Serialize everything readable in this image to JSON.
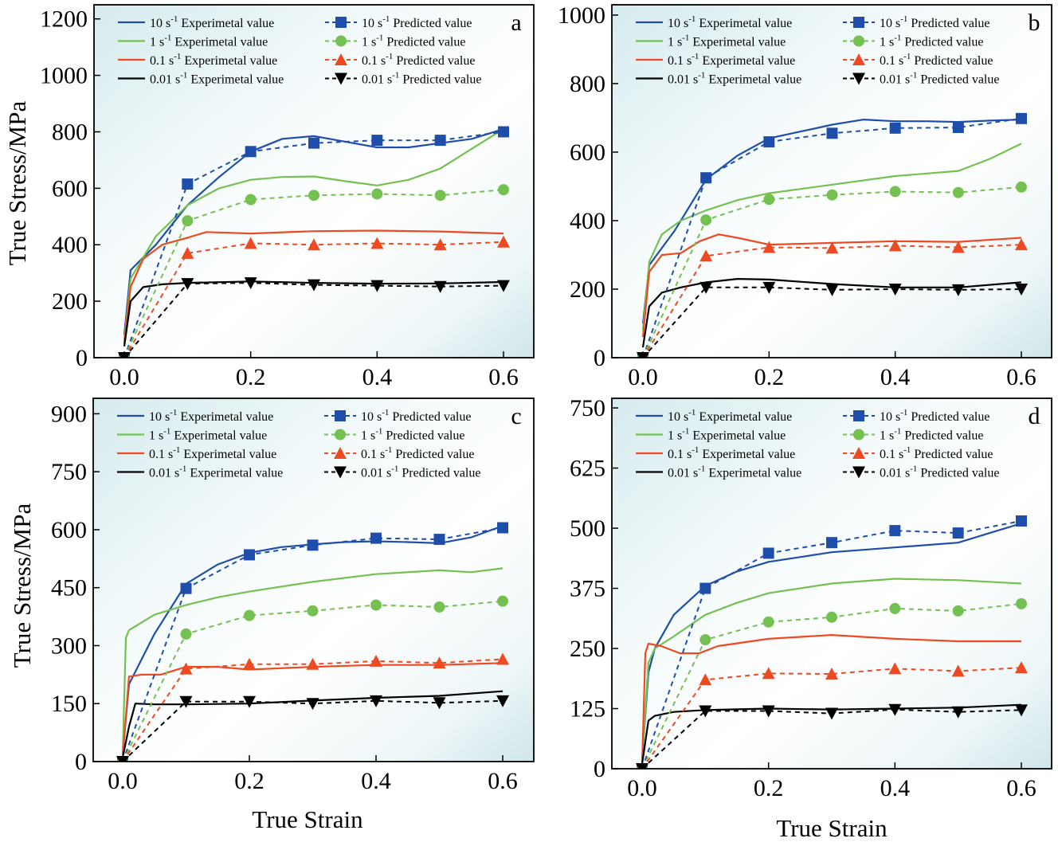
{
  "figure": {
    "xlabel": "True Strain",
    "ylabel": "True Stress/MPa"
  },
  "series_style": {
    "10": {
      "color": "#1f4eaa",
      "marker": "square"
    },
    "1": {
      "color": "#74c151",
      "marker": "circle"
    },
    "0.1": {
      "color": "#ee4a22",
      "marker": "triangle-up"
    },
    "0.01": {
      "color": "#000000",
      "marker": "triangle-down"
    }
  },
  "chart_data": [
    {
      "type": "line",
      "panel": "a",
      "xlim": [
        -0.05,
        0.62
      ],
      "ylim": [
        0,
        1250
      ],
      "xticks": [
        "0.0",
        "0.2",
        "0.4",
        "0.6"
      ],
      "yticks": [
        "0",
        "200",
        "400",
        "600",
        "800",
        "1000",
        "1200"
      ],
      "legend": [
        {
          "rate": "10",
          "base": "10 s",
          "sup": "-1",
          "exp": "Experimetal value",
          "pred": "Predicted value"
        },
        {
          "rate": "1",
          "base": "1 s",
          "sup": "-1",
          "exp": "Experimetal value",
          "pred": "Predicted value"
        },
        {
          "rate": "0.1",
          "base": "0.1 s",
          "sup": "-1",
          "exp": "Experimetal value",
          "pred": "Predicted value"
        },
        {
          "rate": "0.01",
          "base": "0.01 s",
          "sup": "-1",
          "exp": "Experimetal value",
          "pred": "Predicted value"
        }
      ],
      "experimental": [
        {
          "rate": "10",
          "x": [
            0,
            0.01,
            0.05,
            0.1,
            0.15,
            0.2,
            0.25,
            0.3,
            0.35,
            0.4,
            0.45,
            0.5,
            0.55,
            0.6
          ],
          "y": [
            80,
            310,
            400,
            540,
            640,
            730,
            775,
            785,
            765,
            745,
            745,
            760,
            775,
            810
          ]
        },
        {
          "rate": "1",
          "x": [
            0,
            0.01,
            0.05,
            0.1,
            0.15,
            0.2,
            0.25,
            0.3,
            0.35,
            0.4,
            0.45,
            0.5,
            0.55,
            0.6
          ],
          "y": [
            60,
            280,
            430,
            540,
            600,
            630,
            640,
            642,
            625,
            610,
            630,
            670,
            740,
            810
          ]
        },
        {
          "rate": "0.1",
          "x": [
            0,
            0.01,
            0.03,
            0.06,
            0.1,
            0.13,
            0.2,
            0.3,
            0.4,
            0.5,
            0.6
          ],
          "y": [
            50,
            250,
            350,
            400,
            425,
            445,
            440,
            448,
            450,
            447,
            440
          ]
        },
        {
          "rate": "0.01",
          "x": [
            0,
            0.01,
            0.03,
            0.06,
            0.1,
            0.2,
            0.3,
            0.4,
            0.5,
            0.6
          ],
          "y": [
            40,
            200,
            250,
            260,
            265,
            270,
            265,
            262,
            263,
            268
          ]
        }
      ],
      "predicted": [
        {
          "rate": "10",
          "x": [
            0,
            0.1,
            0.2,
            0.3,
            0.4,
            0.5,
            0.6
          ],
          "y": [
            0,
            615,
            730,
            760,
            770,
            770,
            800
          ]
        },
        {
          "rate": "1",
          "x": [
            0,
            0.1,
            0.2,
            0.3,
            0.4,
            0.5,
            0.6
          ],
          "y": [
            0,
            485,
            560,
            575,
            580,
            575,
            595
          ]
        },
        {
          "rate": "0.1",
          "x": [
            0,
            0.1,
            0.2,
            0.3,
            0.4,
            0.5,
            0.6
          ],
          "y": [
            0,
            370,
            405,
            400,
            405,
            400,
            410
          ]
        },
        {
          "rate": "0.01",
          "x": [
            0,
            0.1,
            0.2,
            0.3,
            0.4,
            0.5,
            0.6
          ],
          "y": [
            0,
            262,
            265,
            258,
            255,
            252,
            255
          ]
        }
      ]
    },
    {
      "type": "line",
      "panel": "b",
      "xlim": [
        -0.05,
        0.62
      ],
      "ylim": [
        0,
        1030
      ],
      "xticks": [
        "0.0",
        "0.2",
        "0.4",
        "0.6"
      ],
      "yticks": [
        "0",
        "200",
        "400",
        "600",
        "800",
        "1000"
      ],
      "legend": [
        {
          "rate": "10",
          "base": "10 s",
          "sup": "-1",
          "exp": "Experimetal value",
          "pred": "Predicted value"
        },
        {
          "rate": "1",
          "base": "1 s",
          "sup": "-1",
          "exp": "Experimetal value",
          "pred": "Predicted value"
        },
        {
          "rate": "0.1",
          "base": "0.1 s",
          "sup": "-1",
          "exp": "Experimetal value",
          "pred": "Predicted value"
        },
        {
          "rate": "0.01",
          "base": "0.01 s",
          "sup": "-1",
          "exp": "Experimetal value",
          "pred": "Predicted value"
        }
      ],
      "experimental": [
        {
          "rate": "10",
          "x": [
            0,
            0.01,
            0.05,
            0.1,
            0.15,
            0.2,
            0.25,
            0.3,
            0.35,
            0.4,
            0.45,
            0.5,
            0.55,
            0.6
          ],
          "y": [
            100,
            270,
            370,
            520,
            590,
            640,
            660,
            680,
            695,
            690,
            690,
            688,
            692,
            695
          ]
        },
        {
          "rate": "1",
          "x": [
            0,
            0.01,
            0.03,
            0.06,
            0.1,
            0.15,
            0.2,
            0.3,
            0.4,
            0.5,
            0.55,
            0.6
          ],
          "y": [
            80,
            280,
            360,
            400,
            430,
            460,
            480,
            505,
            530,
            545,
            580,
            625
          ]
        },
        {
          "rate": "0.1",
          "x": [
            0,
            0.01,
            0.03,
            0.06,
            0.09,
            0.12,
            0.15,
            0.2,
            0.3,
            0.4,
            0.5,
            0.6
          ],
          "y": [
            60,
            250,
            300,
            305,
            340,
            360,
            350,
            330,
            335,
            340,
            338,
            350
          ]
        },
        {
          "rate": "0.01",
          "x": [
            0,
            0.01,
            0.03,
            0.06,
            0.1,
            0.15,
            0.2,
            0.3,
            0.4,
            0.5,
            0.6
          ],
          "y": [
            30,
            150,
            190,
            205,
            220,
            230,
            228,
            215,
            205,
            205,
            220
          ]
        }
      ],
      "predicted": [
        {
          "rate": "10",
          "x": [
            0,
            0.1,
            0.2,
            0.3,
            0.4,
            0.5,
            0.6
          ],
          "y": [
            0,
            525,
            630,
            655,
            670,
            672,
            698
          ]
        },
        {
          "rate": "1",
          "x": [
            0,
            0.1,
            0.2,
            0.3,
            0.4,
            0.5,
            0.6
          ],
          "y": [
            0,
            402,
            462,
            475,
            485,
            482,
            498
          ]
        },
        {
          "rate": "0.1",
          "x": [
            0,
            0.1,
            0.2,
            0.3,
            0.4,
            0.5,
            0.6
          ],
          "y": [
            0,
            297,
            322,
            320,
            327,
            322,
            330
          ]
        },
        {
          "rate": "0.01",
          "x": [
            0,
            0.1,
            0.2,
            0.3,
            0.4,
            0.5,
            0.6
          ],
          "y": [
            0,
            205,
            205,
            198,
            200,
            198,
            200
          ]
        }
      ]
    },
    {
      "type": "line",
      "panel": "c",
      "xlim": [
        -0.05,
        0.62
      ],
      "ylim": [
        0,
        940
      ],
      "xticks": [
        "0.0",
        "0.2",
        "0.4",
        "0.6"
      ],
      "yticks": [
        "0",
        "150",
        "300",
        "450",
        "600",
        "750",
        "900"
      ],
      "legend": [
        {
          "rate": "10",
          "base": "10 s",
          "sup": "-1",
          "exp": "Experimetal value",
          "pred": "Predicted value"
        },
        {
          "rate": "1",
          "base": "1 s",
          "sup": "-1",
          "exp": "Experimetal value",
          "pred": "Predicted value"
        },
        {
          "rate": "0.1",
          "base": "0.1 s",
          "sup": "-1",
          "exp": "Experimetal value",
          "pred": "Predicted value"
        },
        {
          "rate": "0.01",
          "base": "0.01 s",
          "sup": "-1",
          "exp": "Experimetal value",
          "pred": "Predicted value"
        }
      ],
      "experimental": [
        {
          "rate": "10",
          "x": [
            0,
            0.01,
            0.05,
            0.1,
            0.15,
            0.2,
            0.25,
            0.3,
            0.35,
            0.4,
            0.45,
            0.5,
            0.55,
            0.6
          ],
          "y": [
            20,
            200,
            330,
            460,
            510,
            540,
            555,
            562,
            568,
            570,
            568,
            565,
            580,
            610
          ]
        },
        {
          "rate": "1",
          "x": [
            0,
            0.005,
            0.01,
            0.05,
            0.1,
            0.15,
            0.2,
            0.3,
            0.4,
            0.5,
            0.55,
            0.6
          ],
          "y": [
            20,
            320,
            340,
            380,
            405,
            425,
            440,
            465,
            485,
            495,
            490,
            500
          ]
        },
        {
          "rate": "0.1",
          "x": [
            0,
            0.01,
            0.03,
            0.06,
            0.1,
            0.15,
            0.2,
            0.3,
            0.4,
            0.5,
            0.6
          ],
          "y": [
            10,
            220,
            225,
            225,
            245,
            245,
            238,
            245,
            250,
            250,
            255
          ]
        },
        {
          "rate": "0.01",
          "x": [
            0,
            0.01,
            0.02,
            0.05,
            0.1,
            0.2,
            0.3,
            0.4,
            0.5,
            0.6
          ],
          "y": [
            10,
            90,
            150,
            148,
            148,
            150,
            158,
            165,
            170,
            182
          ]
        }
      ],
      "predicted": [
        {
          "rate": "10",
          "x": [
            0,
            0.1,
            0.2,
            0.3,
            0.4,
            0.5,
            0.6
          ],
          "y": [
            0,
            448,
            535,
            560,
            578,
            575,
            605
          ]
        },
        {
          "rate": "1",
          "x": [
            0,
            0.1,
            0.2,
            0.3,
            0.4,
            0.5,
            0.6
          ],
          "y": [
            0,
            330,
            378,
            390,
            405,
            400,
            415
          ]
        },
        {
          "rate": "0.1",
          "x": [
            0,
            0.1,
            0.2,
            0.3,
            0.4,
            0.5,
            0.6
          ],
          "y": [
            0,
            240,
            252,
            252,
            260,
            255,
            265
          ]
        },
        {
          "rate": "0.01",
          "x": [
            0,
            0.1,
            0.2,
            0.3,
            0.4,
            0.5,
            0.6
          ],
          "y": [
            0,
            155,
            155,
            150,
            157,
            152,
            157
          ]
        }
      ]
    },
    {
      "type": "line",
      "panel": "d",
      "xlim": [
        -0.05,
        0.62
      ],
      "ylim": [
        0,
        770
      ],
      "xticks": [
        "0.0",
        "0.2",
        "0.4",
        "0.6"
      ],
      "yticks": [
        "0",
        "125",
        "250",
        "375",
        "500",
        "625",
        "750"
      ],
      "legend": [
        {
          "rate": "10",
          "base": "10 s",
          "sup": "-1",
          "exp": "Experimetal value",
          "pred": "Predicted value"
        },
        {
          "rate": "1",
          "base": "1 s",
          "sup": "-1",
          "exp": "Experimetal value",
          "pred": "Predicted value"
        },
        {
          "rate": "0.1",
          "base": "0.1 s",
          "sup": "-1",
          "exp": "Experimetal value",
          "pred": "Predicted value"
        },
        {
          "rate": "0.01",
          "base": "0.01 s",
          "sup": "-1",
          "exp": "Experimetal value",
          "pred": "Predicted value"
        }
      ],
      "experimental": [
        {
          "rate": "10",
          "x": [
            0,
            0.01,
            0.02,
            0.05,
            0.1,
            0.15,
            0.2,
            0.25,
            0.3,
            0.4,
            0.5,
            0.55,
            0.6
          ],
          "y": [
            20,
            200,
            250,
            320,
            380,
            410,
            430,
            440,
            450,
            460,
            470,
            490,
            510
          ]
        },
        {
          "rate": "1",
          "x": [
            0,
            0.01,
            0.02,
            0.05,
            0.1,
            0.15,
            0.2,
            0.3,
            0.4,
            0.5,
            0.6
          ],
          "y": [
            20,
            220,
            250,
            275,
            320,
            345,
            365,
            385,
            395,
            392,
            385
          ]
        },
        {
          "rate": "0.1",
          "x": [
            0,
            0.005,
            0.01,
            0.03,
            0.06,
            0.09,
            0.12,
            0.2,
            0.3,
            0.4,
            0.5,
            0.6
          ],
          "y": [
            10,
            240,
            260,
            255,
            240,
            240,
            255,
            270,
            278,
            270,
            265,
            265
          ]
        },
        {
          "rate": "0.01",
          "x": [
            0,
            0.01,
            0.02,
            0.05,
            0.1,
            0.2,
            0.3,
            0.4,
            0.5,
            0.6
          ],
          "y": [
            10,
            100,
            110,
            118,
            122,
            125,
            123,
            125,
            127,
            133
          ]
        }
      ],
      "predicted": [
        {
          "rate": "10",
          "x": [
            0,
            0.1,
            0.2,
            0.3,
            0.4,
            0.5,
            0.6
          ],
          "y": [
            0,
            375,
            448,
            470,
            495,
            490,
            515
          ]
        },
        {
          "rate": "1",
          "x": [
            0,
            0.1,
            0.2,
            0.3,
            0.4,
            0.5,
            0.6
          ],
          "y": [
            0,
            268,
            305,
            315,
            333,
            328,
            343
          ]
        },
        {
          "rate": "0.1",
          "x": [
            0,
            0.1,
            0.2,
            0.3,
            0.4,
            0.5,
            0.6
          ],
          "y": [
            0,
            185,
            198,
            197,
            208,
            203,
            210
          ]
        },
        {
          "rate": "0.01",
          "x": [
            0,
            0.1,
            0.2,
            0.3,
            0.4,
            0.5,
            0.6
          ],
          "y": [
            0,
            120,
            120,
            115,
            123,
            118,
            122
          ]
        }
      ]
    }
  ]
}
